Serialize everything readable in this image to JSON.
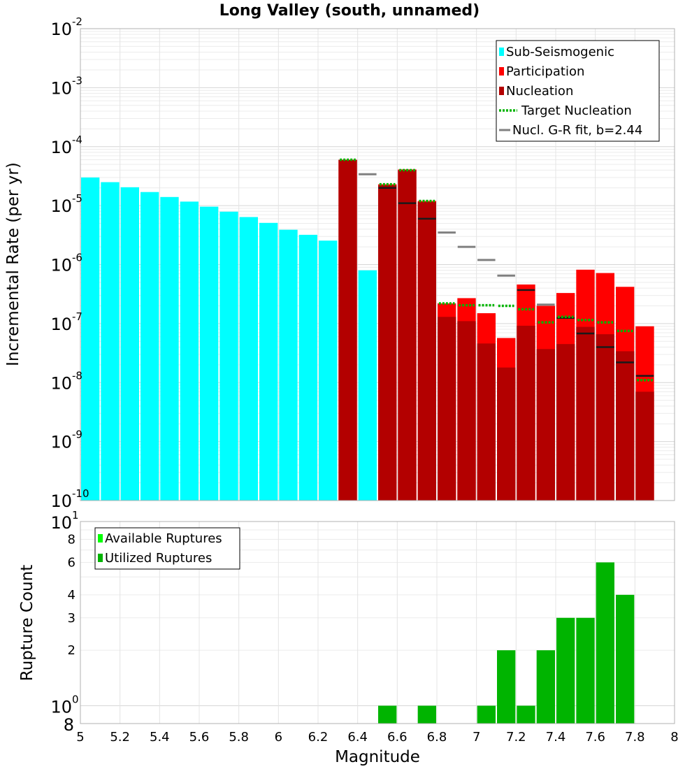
{
  "chart_data": [
    {
      "type": "bar",
      "title": "Long Valley (south, unnamed)",
      "ylabel": "Incremental Rate (per yr)",
      "xlim": [
        5,
        8
      ],
      "ylim": [
        1e-10,
        0.01
      ],
      "yscale": "log",
      "ytick_labels": [
        {
          "base": "10",
          "exp": "-2"
        },
        {
          "base": "10",
          "exp": "-3"
        },
        {
          "base": "10",
          "exp": "-4"
        },
        {
          "base": "10",
          "exp": "-5"
        },
        {
          "base": "10",
          "exp": "-6"
        },
        {
          "base": "10",
          "exp": "-7"
        },
        {
          "base": "10",
          "exp": "-8"
        },
        {
          "base": "10",
          "exp": "-9"
        },
        {
          "base": "10",
          "exp": "-10"
        }
      ],
      "bin_width": 0.1,
      "colors": {
        "sub_seismogenic": "#00ffff",
        "participation": "#ff0000",
        "nucleation": "#b30000",
        "target_nucleation": "#00b400",
        "gr_fit": "#808080",
        "marker": "#1a1a1a"
      },
      "legend": [
        {
          "label": "Sub-Seismogenic",
          "key": "sub_seismogenic",
          "style": "box"
        },
        {
          "label": "Participation",
          "key": "participation",
          "style": "box"
        },
        {
          "label": "Nucleation",
          "key": "nucleation",
          "style": "box"
        },
        {
          "label": "Target Nucleation",
          "key": "target_nucleation",
          "style": "dotted"
        },
        {
          "label": "Nucl. G-R fit, b=2.44",
          "key": "gr_fit",
          "style": "line"
        }
      ],
      "series": [
        {
          "name": "Sub-Seismogenic",
          "key": "sub_seismogenic",
          "x": [
            5.05,
            5.15,
            5.25,
            5.35,
            5.45,
            5.55,
            5.65,
            5.75,
            5.85,
            5.95,
            6.05,
            6.15,
            6.25,
            6.45
          ],
          "values": [
            3e-05,
            2.5e-05,
            2.05e-05,
            1.7e-05,
            1.4e-05,
            1.17e-05,
            9.6e-06,
            7.9e-06,
            6.4e-06,
            5.1e-06,
            3.9e-06,
            3.2e-06,
            2.55e-06,
            8e-07
          ]
        },
        {
          "name": "Participation",
          "key": "participation",
          "x": [
            6.35,
            6.55,
            6.65,
            6.75,
            6.85,
            6.95,
            7.05,
            7.15,
            7.25,
            7.35,
            7.45,
            7.55,
            7.65,
            7.75,
            7.85
          ],
          "values": [
            6e-05,
            2.3e-05,
            4.1e-05,
            1.2e-05,
            2.2e-07,
            2.7e-07,
            1.5e-07,
            5.7e-08,
            4.6e-07,
            2e-07,
            3.3e-07,
            8.2e-07,
            7.2e-07,
            4.2e-07,
            9e-08
          ]
        },
        {
          "name": "Nucleation",
          "key": "nucleation",
          "x": [
            6.35,
            6.55,
            6.65,
            6.75,
            6.85,
            6.95,
            7.05,
            7.15,
            7.25,
            7.35,
            7.45,
            7.55,
            7.65,
            7.75,
            7.85
          ],
          "values": [
            6e-05,
            2.2e-05,
            4e-05,
            1.15e-05,
            1.3e-07,
            1.1e-07,
            4.6e-08,
            1.8e-08,
            9.2e-08,
            3.7e-08,
            4.5e-08,
            8.8e-08,
            6.6e-08,
            3.4e-08,
            7e-09
          ]
        },
        {
          "name": "Participation Markers",
          "key": "marker",
          "x": [
            6.55,
            6.65,
            6.75,
            7.25,
            7.45,
            7.55,
            7.65,
            7.75,
            7.85
          ],
          "values": [
            2e-05,
            1.1e-05,
            6e-06,
            3.7e-07,
            1.25e-07,
            6.8e-08,
            4e-08,
            2.2e-08,
            1.3e-08
          ]
        },
        {
          "name": "Target Nucleation",
          "key": "target_nucleation",
          "x": [
            6.35,
            6.55,
            6.65,
            6.75,
            6.85,
            6.95,
            7.05,
            7.15,
            7.25,
            7.35,
            7.45,
            7.55,
            7.65,
            7.75,
            7.85
          ],
          "values": [
            6e-05,
            2.3e-05,
            4e-05,
            1.2e-05,
            2.2e-07,
            2.05e-07,
            2.05e-07,
            2e-07,
            1.75e-07,
            1.05e-07,
            1.3e-07,
            1.15e-07,
            1.05e-07,
            7.5e-08,
            1.1e-08
          ]
        },
        {
          "name": "Nucl. G-R fit, b=2.44",
          "key": "gr_fit",
          "x": [
            6.45,
            6.85,
            6.95,
            7.05,
            7.15,
            7.35
          ],
          "values": [
            3.4e-05,
            3.5e-06,
            2e-06,
            1.2e-06,
            6.5e-07,
            2.1e-07
          ]
        }
      ]
    },
    {
      "type": "bar",
      "xlabel": "Magnitude",
      "ylabel": "Rupture Count",
      "xlim": [
        5,
        8
      ],
      "ylim": [
        0.8,
        10
      ],
      "yscale": "log",
      "xtick_values": [
        5,
        5.2,
        5.4,
        5.6,
        5.8,
        6,
        6.2,
        6.4,
        6.6,
        6.8,
        7,
        7.2,
        7.4,
        7.6,
        7.8,
        8
      ],
      "xtick_labels": [
        "5",
        "5.2",
        "5.4",
        "5.6",
        "5.8",
        "6",
        "6.2",
        "6.4",
        "6.6",
        "6.8",
        "7",
        "7.2",
        "7.4",
        "7.6",
        "7.8",
        "8"
      ],
      "ytick_values": [
        2,
        3,
        4,
        6,
        8
      ],
      "ytick_labels": [
        "2",
        "3",
        "4",
        "6",
        "8"
      ],
      "ymajor_labels": [
        {
          "value": 10,
          "base": "10",
          "exp": "1"
        },
        {
          "value": 1,
          "base": "10",
          "exp": "0"
        }
      ],
      "ybottom_label": "8",
      "bin_width": 0.1,
      "colors": {
        "available": "#00ff00",
        "utilized": "#00b400"
      },
      "legend": [
        {
          "label": "Available Ruptures",
          "key": "available"
        },
        {
          "label": "Utilized Ruptures",
          "key": "utilized"
        }
      ],
      "series": [
        {
          "name": "Utilized Ruptures",
          "key": "utilized",
          "x": [
            6.55,
            6.75,
            7.05,
            7.15,
            7.25,
            7.35,
            7.45,
            7.55,
            7.65,
            7.75
          ],
          "values": [
            1,
            1,
            1,
            2,
            1,
            2,
            3,
            3,
            6,
            4
          ]
        }
      ]
    }
  ]
}
